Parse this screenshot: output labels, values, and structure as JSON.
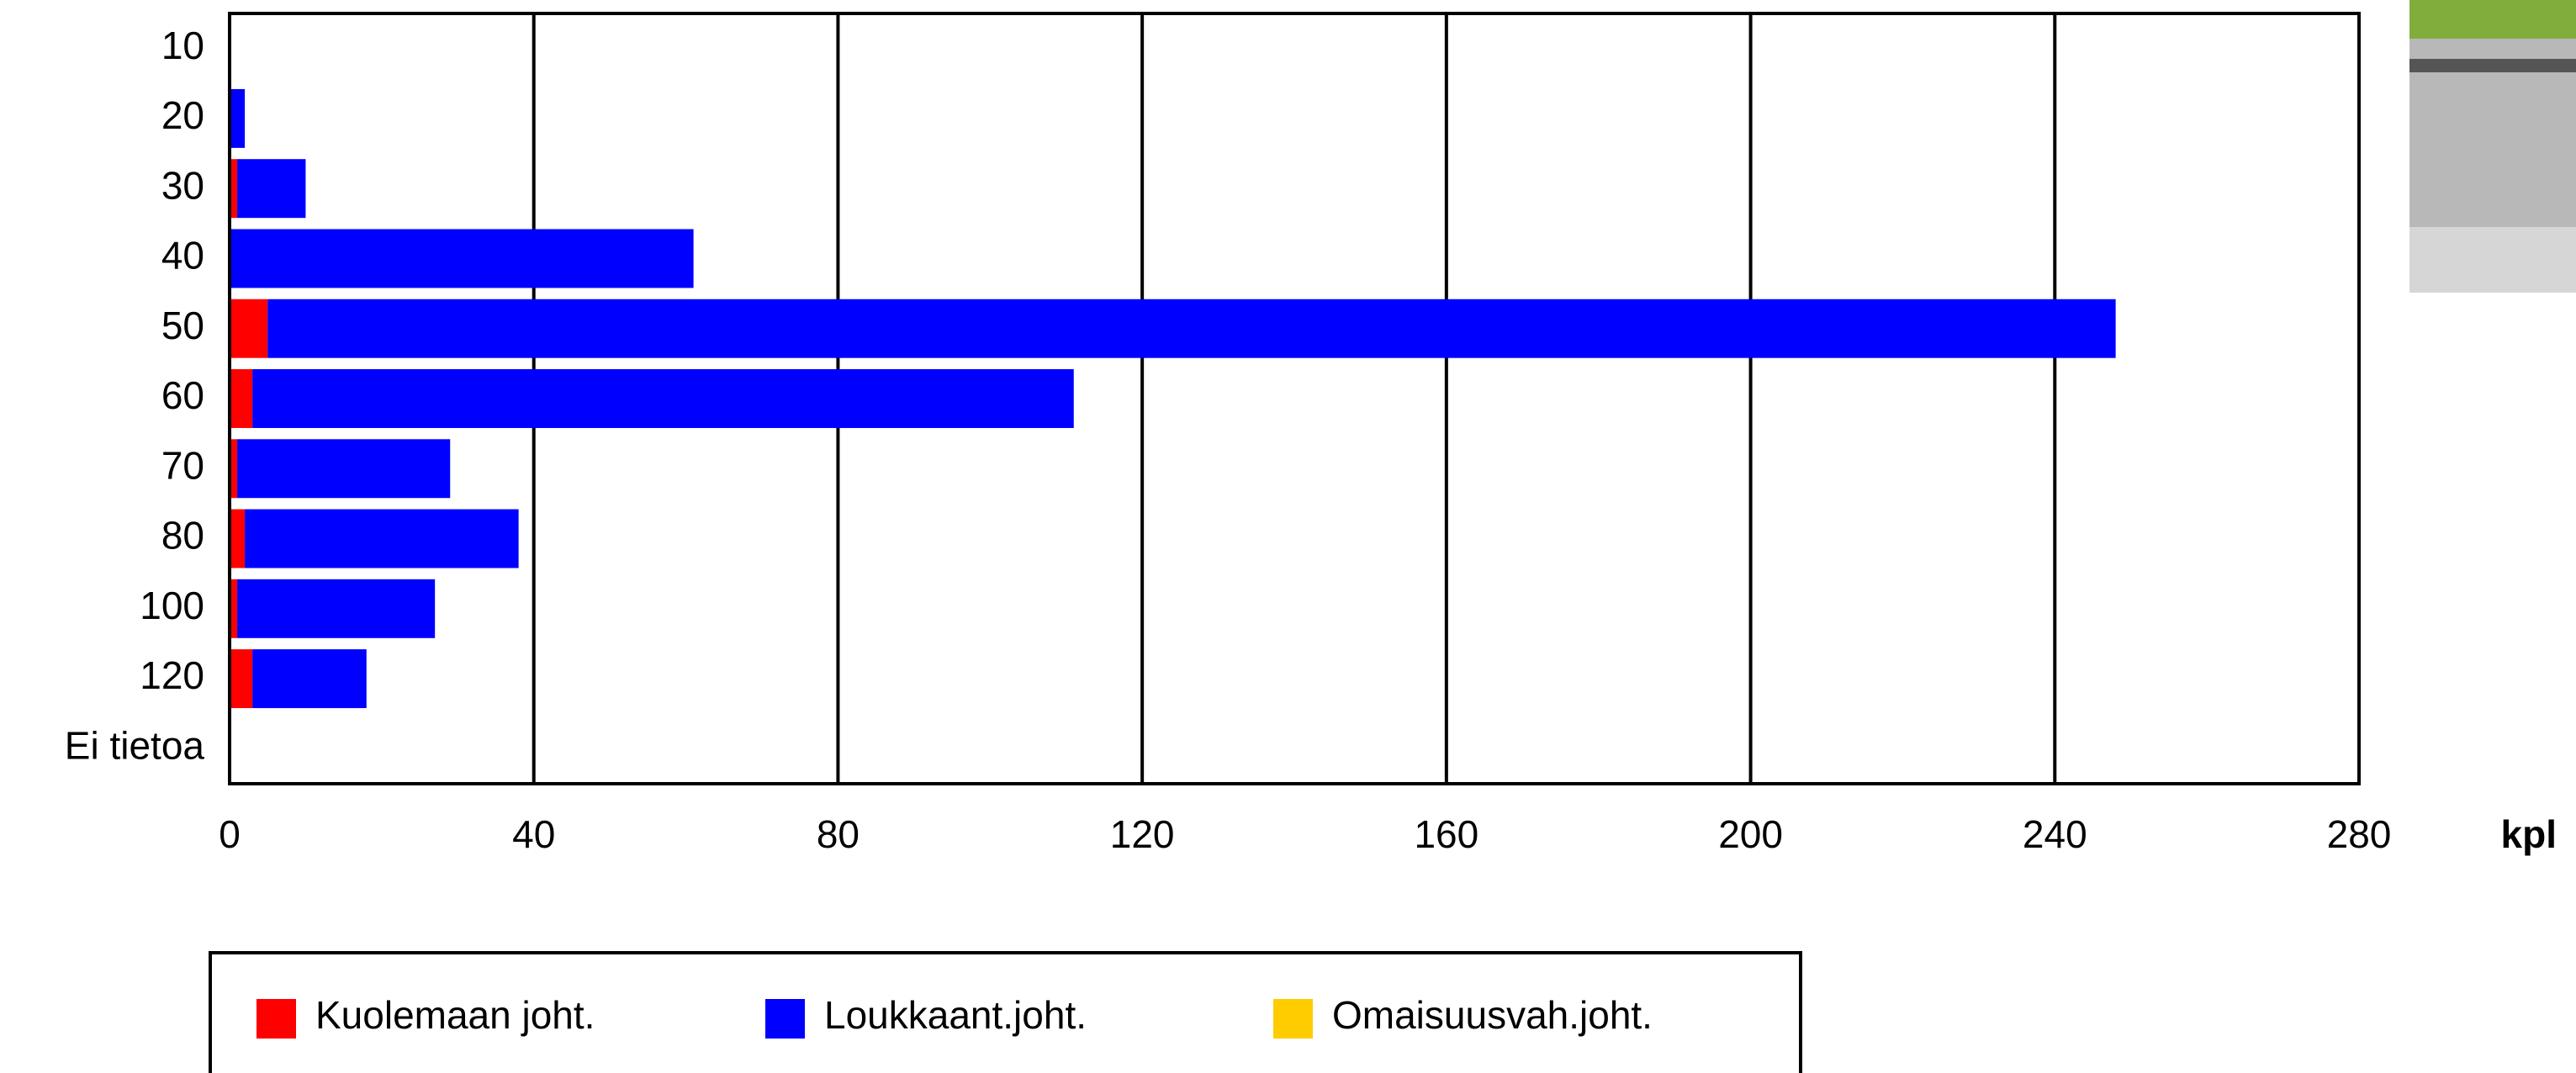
{
  "chart_data": {
    "type": "stacked-barh",
    "x_label": "kpl",
    "categories": [
      "10",
      "20",
      "30",
      "40",
      "50",
      "60",
      "70",
      "80",
      "100",
      "120",
      "Ei tietoa"
    ],
    "series": [
      {
        "name": "Kuolemaan joht.",
        "color": "#ff0000",
        "values": [
          0,
          0,
          1,
          0,
          5,
          3,
          1,
          2,
          1,
          3,
          0
        ]
      },
      {
        "name": "Loukkaant.joht.",
        "color": "#0000ff",
        "values": [
          0,
          2,
          9,
          61,
          243,
          108,
          28,
          36,
          26,
          15,
          0
        ]
      },
      {
        "name": "Omaisuusvah.joht.",
        "color": "#ffcc00",
        "values": [
          0,
          0,
          0,
          0,
          0,
          0,
          0,
          0,
          0,
          0,
          0
        ]
      }
    ],
    "xlim": [
      0,
      280
    ],
    "xticks": [
      0,
      40,
      80,
      120,
      160,
      200,
      240,
      280
    ],
    "grid": true
  }
}
